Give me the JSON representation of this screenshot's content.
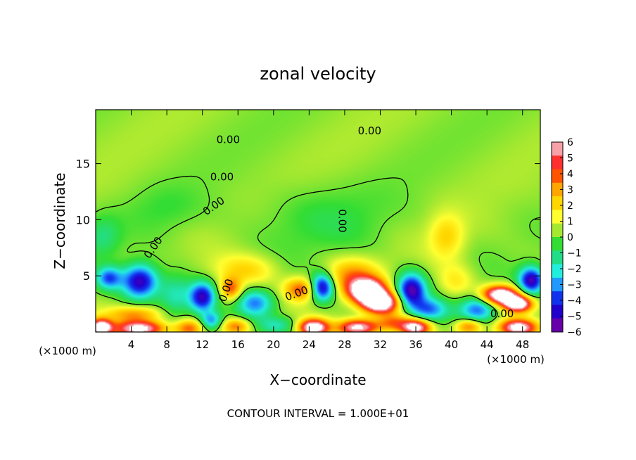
{
  "chart_data": {
    "type": "heatmap",
    "title": "zonal velocity",
    "xlabel": "X−coordinate",
    "ylabel": "Z−coordinate",
    "x_unit_left": "(×1000 m)",
    "x_unit_right": "(×1000 m)",
    "footer": "CONTOUR INTERVAL = 1.000E+01",
    "xlim": [
      0,
      50
    ],
    "ylim": [
      0,
      19.8
    ],
    "x_ticks": [
      4,
      8,
      12,
      16,
      20,
      24,
      28,
      32,
      36,
      40,
      44,
      48
    ],
    "y_ticks": [
      5,
      10,
      15
    ],
    "colorbar": {
      "range": [
        -6,
        6
      ],
      "ticks": [
        6,
        5,
        4,
        3,
        2,
        1,
        0,
        -1,
        -2,
        -3,
        -4,
        -5,
        -6
      ],
      "tick_labels": [
        "6",
        "5",
        "4",
        "3",
        "2",
        "1",
        "0",
        "−1",
        "−2",
        "−3",
        "−4",
        "−5",
        "−6"
      ],
      "colors": [
        "#f7a0a8",
        "#ff3030",
        "#ff5500",
        "#ffa500",
        "#ffd700",
        "#ffff30",
        "#a6e830",
        "#33dd33",
        "#22dd88",
        "#22eedd",
        "#2299ff",
        "#1133ee",
        "#2200cc",
        "#6600aa"
      ]
    },
    "contour_labels": [
      {
        "text": "0.00",
        "x": 14.9,
        "y": 17.1,
        "rotate": 0
      },
      {
        "text": "0.00",
        "x": 30.8,
        "y": 17.9,
        "rotate": 0
      },
      {
        "text": "0.00",
        "x": 14.2,
        "y": 13.8,
        "rotate": 0
      },
      {
        "text": "0.00",
        "x": 13.3,
        "y": 11.2,
        "rotate": -35
      },
      {
        "text": "0.00",
        "x": 6.5,
        "y": 7.5,
        "rotate": -55
      },
      {
        "text": "0.00",
        "x": 27.7,
        "y": 9.9,
        "rotate": 90
      },
      {
        "text": "0.00",
        "x": 14.7,
        "y": 3.7,
        "rotate": -70
      },
      {
        "text": "0.00",
        "x": 22.6,
        "y": 3.4,
        "rotate": -20
      },
      {
        "text": "0.00",
        "x": 45.7,
        "y": 1.6,
        "rotate": 0
      }
    ],
    "field": {
      "background": 0.3,
      "features": [
        {
          "x": 5.0,
          "z": 4.5,
          "value": -6.0,
          "sx": 2.0,
          "sz": 1.5
        },
        {
          "x": 1.5,
          "z": 4.8,
          "value": -4.0,
          "sx": 1.4,
          "sz": 1.0
        },
        {
          "x": 0.6,
          "z": 0.4,
          "value": 8.0,
          "sx": 1.2,
          "sz": 0.7
        },
        {
          "x": 5.0,
          "z": 0.3,
          "value": 7.0,
          "sx": 2.8,
          "sz": 0.7
        },
        {
          "x": 4.5,
          "z": 1.6,
          "value": 3.0,
          "sx": 3.0,
          "sz": 0.7
        },
        {
          "x": 9.0,
          "z": 3.3,
          "value": -2.5,
          "sx": 2.0,
          "sz": 1.8
        },
        {
          "x": 10.5,
          "z": 0.3,
          "value": 4.0,
          "sx": 1.6,
          "sz": 0.8
        },
        {
          "x": 12.0,
          "z": 3.1,
          "value": -5.5,
          "sx": 1.4,
          "sz": 1.3
        },
        {
          "x": 13.0,
          "z": 1.0,
          "value": -3.5,
          "sx": 1.2,
          "sz": 0.8
        },
        {
          "x": 15.2,
          "z": 3.8,
          "value": 4.0,
          "sx": 1.2,
          "sz": 1.0
        },
        {
          "x": 15.8,
          "z": 0.5,
          "value": 3.5,
          "sx": 1.6,
          "sz": 0.7
        },
        {
          "x": 18.0,
          "z": 2.6,
          "value": -3.5,
          "sx": 2.0,
          "sz": 1.2
        },
        {
          "x": 17.0,
          "z": 5.5,
          "value": 2.0,
          "sx": 3.5,
          "sz": 1.4
        },
        {
          "x": 20.5,
          "z": 0.6,
          "value": -2.0,
          "sx": 2.4,
          "sz": 0.8
        },
        {
          "x": 23.0,
          "z": 3.8,
          "value": 4.0,
          "sx": 1.8,
          "sz": 1.0
        },
        {
          "x": 25.5,
          "z": 4.0,
          "value": -6.0,
          "sx": 1.3,
          "sz": 1.2
        },
        {
          "x": 24.5,
          "z": 0.4,
          "value": 8.0,
          "sx": 1.6,
          "sz": 0.7
        },
        {
          "x": 30.5,
          "z": 3.7,
          "value": 9.0,
          "sx": 2.0,
          "sz": 1.0
        },
        {
          "x": 32.0,
          "z": 2.6,
          "value": 9.0,
          "sx": 2.0,
          "sz": 0.9
        },
        {
          "x": 29.0,
          "z": 5.0,
          "value": 3.0,
          "sx": 3.0,
          "sz": 1.5
        },
        {
          "x": 29.5,
          "z": 0.4,
          "value": 7.0,
          "sx": 2.2,
          "sz": 0.7
        },
        {
          "x": 33.5,
          "z": 0.8,
          "value": 3.5,
          "sx": 2.0,
          "sz": 0.8
        },
        {
          "x": 35.5,
          "z": 3.7,
          "value": -6.0,
          "sx": 1.6,
          "sz": 1.5
        },
        {
          "x": 37.5,
          "z": 2.0,
          "value": -3.5,
          "sx": 2.0,
          "sz": 1.0
        },
        {
          "x": 39.5,
          "z": 8.5,
          "value": 2.0,
          "sx": 2.0,
          "sz": 2.0
        },
        {
          "x": 36.0,
          "z": 0.4,
          "value": 7.0,
          "sx": 1.6,
          "sz": 0.7
        },
        {
          "x": 40.5,
          "z": 4.5,
          "value": 1.5,
          "sx": 2.0,
          "sz": 1.5
        },
        {
          "x": 43.0,
          "z": 2.0,
          "value": -4.0,
          "sx": 2.0,
          "sz": 1.2
        },
        {
          "x": 45.5,
          "z": 3.3,
          "value": 8.5,
          "sx": 2.0,
          "sz": 0.8
        },
        {
          "x": 47.5,
          "z": 2.5,
          "value": 8.0,
          "sx": 1.6,
          "sz": 0.7
        },
        {
          "x": 49.0,
          "z": 4.6,
          "value": -6.0,
          "sx": 1.4,
          "sz": 1.2
        },
        {
          "x": 47.5,
          "z": 0.4,
          "value": 7.0,
          "sx": 2.0,
          "sz": 0.7
        },
        {
          "x": 42.0,
          "z": 0.5,
          "value": 4.0,
          "sx": 1.5,
          "sz": 0.7
        },
        {
          "x": 0.8,
          "z": 8.5,
          "value": -1.5,
          "sx": 2.0,
          "sz": 1.8
        },
        {
          "x": 25.0,
          "z": 10.0,
          "value": -0.8,
          "sx": 8.0,
          "sz": 3.0
        },
        {
          "x": 8.0,
          "z": 11.0,
          "value": -0.6,
          "sx": 4.0,
          "sz": 2.0
        }
      ]
    }
  }
}
